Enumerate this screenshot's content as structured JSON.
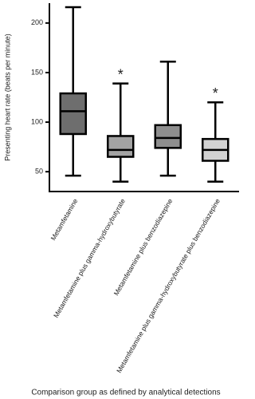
{
  "chart_data": {
    "type": "box",
    "ylabel": "Presenting heart rate (beats per minute)",
    "xlabel": "Comparison group as defined by analytical detections",
    "categories": [
      "Metamfetamine",
      "Metamfetamine plus gamma-hydroxybutyrate",
      "Metamfetamine plus benzodiazepine",
      "Metamfetamine plus gamma-hydroxybutyrate plus benzodiazepine"
    ],
    "boxes": [
      {
        "min": 46,
        "q1": 88,
        "median": 111,
        "q3": 129,
        "max": 216
      },
      {
        "min": 40,
        "q1": 65,
        "median": 72,
        "q3": 86,
        "max": 139
      },
      {
        "min": 46,
        "q1": 74,
        "median": 84,
        "q3": 97,
        "max": 161
      },
      {
        "min": 40,
        "q1": 61,
        "median": 72,
        "q3": 83,
        "max": 120
      }
    ],
    "colors": [
      "#6e6e6e",
      "#a3a3a3",
      "#8e8e8e",
      "#d2d2d2"
    ],
    "annotations": [
      null,
      "*",
      null,
      "*"
    ],
    "ylim": [
      30,
      220
    ],
    "yticks": [
      50,
      100,
      150,
      200
    ]
  }
}
